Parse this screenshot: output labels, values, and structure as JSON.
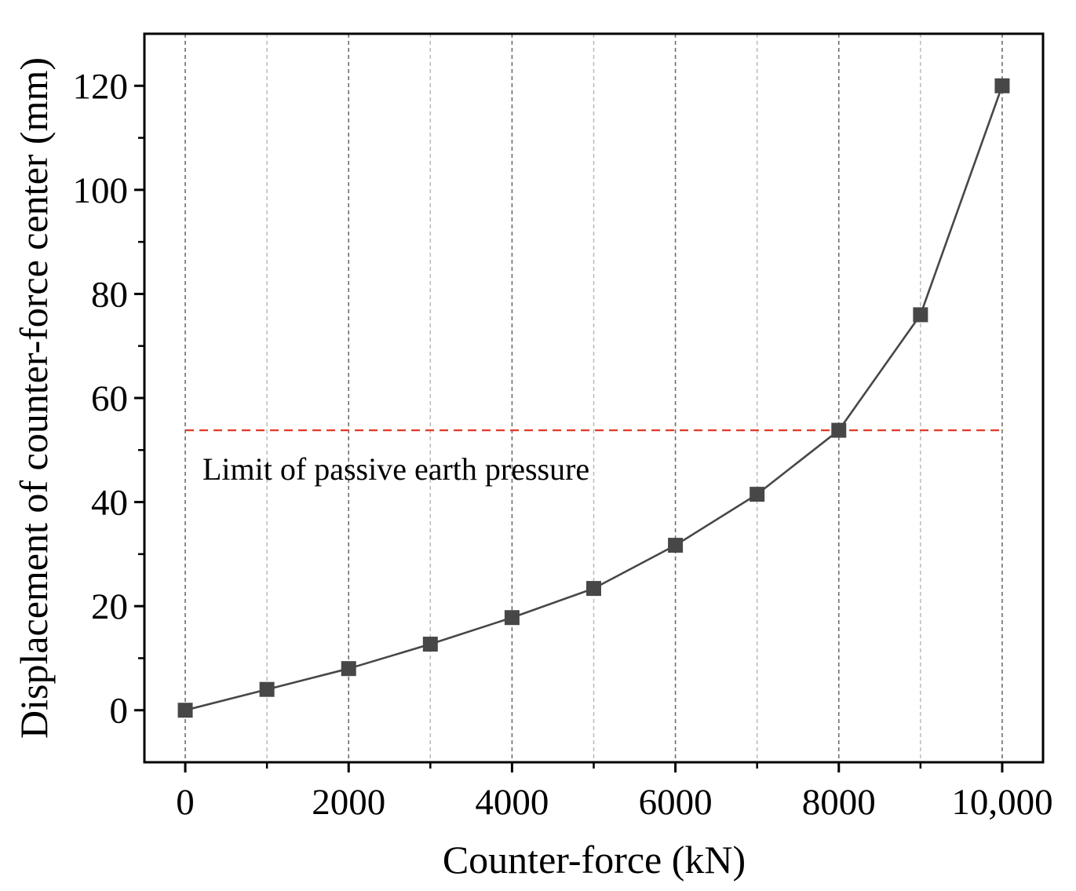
{
  "chart_data": {
    "type": "line",
    "title": "",
    "xlabel": "Counter-force (kN)",
    "ylabel": "Displacement of counter-force center (mm)",
    "xlim": [
      -500,
      10500
    ],
    "ylim": [
      -10,
      130
    ],
    "x_ticks": [
      0,
      2000,
      4000,
      6000,
      8000,
      10000
    ],
    "x_tick_labels": [
      "0",
      "2000",
      "4000",
      "6000",
      "8000",
      "10,000"
    ],
    "x_minor_ticks": [
      1000,
      3000,
      5000,
      7000,
      9000
    ],
    "y_ticks": [
      0,
      20,
      40,
      60,
      80,
      100,
      120
    ],
    "y_tick_labels": [
      "0",
      "20",
      "40",
      "60",
      "80",
      "100",
      "120"
    ],
    "y_minor_ticks": [
      10,
      30,
      50,
      70,
      90,
      110
    ],
    "grid": "vertical dashed",
    "series": [
      {
        "name": "Displacement",
        "marker": "square",
        "x": [
          0,
          1000,
          2000,
          3000,
          4000,
          5000,
          6000,
          7000,
          8000,
          9000,
          10000
        ],
        "values": [
          0,
          4,
          8,
          12.7,
          17.8,
          23.4,
          31.7,
          41.5,
          53.8,
          76,
          120
        ]
      }
    ],
    "reference_line": {
      "label": "Limit of passive earth pressure",
      "y": 53.8,
      "x_start": 0,
      "x_end": 10000,
      "color": "#e0392b"
    },
    "colors": {
      "series": "#474747",
      "grid_major": "#6e6e6e",
      "grid_minor": "#b5b5b5",
      "axis": "#000000"
    }
  }
}
